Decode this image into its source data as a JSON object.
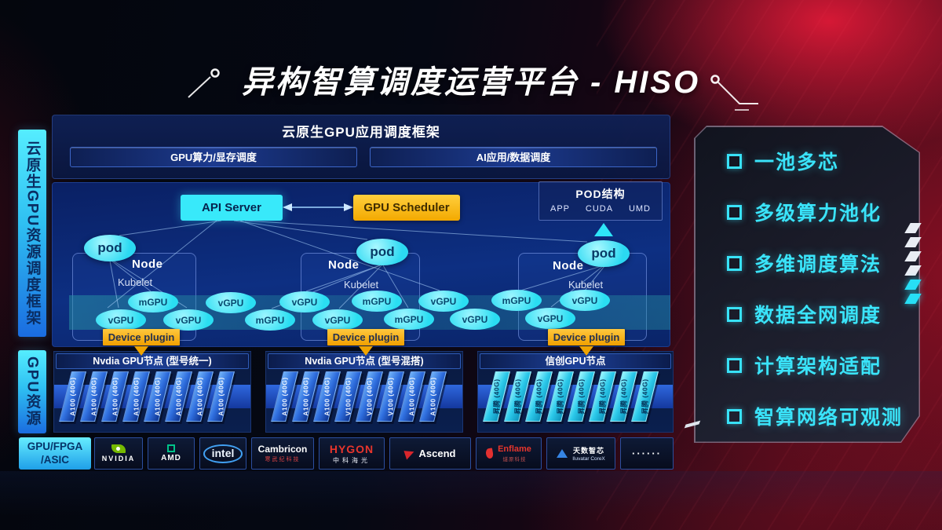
{
  "title": "异构智算调度运营平台 - HISO",
  "sidebar": {
    "framework_label": "云原生GPU资源调度框架",
    "gpu_label": "GPU资源"
  },
  "app_framework": {
    "title": "云原生GPU应用调度框架",
    "bars": [
      "GPU算力/显存调度",
      "AI应用/数据调度"
    ]
  },
  "scheduler": {
    "api_server": "API Server",
    "gpu_scheduler": "GPU Scheduler"
  },
  "pod_structure": {
    "title": "POD结构",
    "items": [
      "APP",
      "CUDA",
      "UMD"
    ]
  },
  "node_labels": {
    "pod": "pod",
    "node": "Node",
    "kubelet": "Kubelet",
    "device_plugin": "Device plugin"
  },
  "gpu_ellipses": [
    "vGPU",
    "mGPU",
    "vGPU",
    "vGPU",
    "mGPU",
    "vGPU",
    "vGPU",
    "mGPU",
    "mGPU",
    "vGPU",
    "vGPU",
    "mGPU",
    "vGPU",
    "vGPU"
  ],
  "gpu_nodes": [
    {
      "label": "Nvdia GPU节点 (型号统一)",
      "style": "blue",
      "cards": [
        "A100 (40G)",
        "A100 (40G)",
        "A100 (40G)",
        "A100 (40G)",
        "A100 (40G)",
        "A100 (40G)",
        "A100 (40G)",
        "A100 (40G)"
      ]
    },
    {
      "label": "Nvdia GPU节点 (型号混搭)",
      "style": "blue",
      "cards": [
        "A100 (40G)",
        "A100 (40G)",
        "A100 (40G)",
        "V100 (40G)",
        "V100 (40G)",
        "V100 (40G)",
        "A100 (40G)",
        "A100 (40G)"
      ]
    },
    {
      "label": "信创GPU节点",
      "style": "cyan",
      "cards": [
        "昇腾 (40G)",
        "昇腾 (40G)",
        "昇腾 (40G)",
        "昇腾 (40G)",
        "昇腾 (40G)",
        "昇腾 (40G)",
        "昇腾 (40G)",
        "昇腾 (40G)"
      ]
    }
  ],
  "vendor_row": {
    "label_lines": [
      "GPU/FPGA",
      "/ASIC"
    ],
    "vendors": [
      {
        "id": "nvidia",
        "line1": "NVIDIA",
        "line2": ""
      },
      {
        "id": "amd",
        "line1": "AMD",
        "line2": ""
      },
      {
        "id": "intel",
        "line1": "intel",
        "line2": ""
      },
      {
        "id": "cambricon",
        "line1": "Cambricon",
        "line2": "寒武纪科技"
      },
      {
        "id": "hygon",
        "line1": "HYGON",
        "line2": "中科海光"
      },
      {
        "id": "ascend",
        "line1": "Ascend",
        "line2": ""
      },
      {
        "id": "enflame",
        "line1": "Enflame",
        "line2": "燧原科技"
      },
      {
        "id": "iluvatar",
        "line1": "天数智芯",
        "line2": "Iluvatar CoreX"
      },
      {
        "id": "more",
        "line1": "······",
        "line2": ""
      }
    ]
  },
  "features": [
    "一池多芯",
    "多级算力池化",
    "多维调度算法",
    "数据全网调度",
    "计算架构适配",
    "智算网络可观测"
  ],
  "colors": {
    "accent_cyan": "#2ee5f8",
    "accent_orange": "#f5b301",
    "card_blue": "#2f6ede",
    "card_cyan": "#27c8e8",
    "panel_navy": "#0c2a6e",
    "bg_red": "#9c1024"
  }
}
